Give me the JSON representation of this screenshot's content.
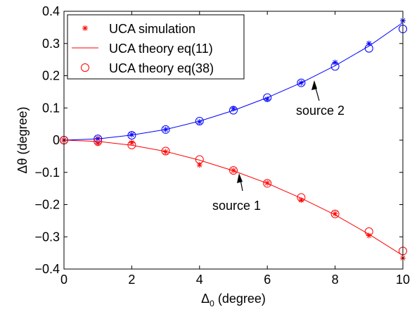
{
  "chart_data": {
    "type": "line",
    "xlabel": "Δ",
    "xlabel_sub": "0",
    "xlabel_unit": " (degree)",
    "ylabel": "Δθ (degree)",
    "xlim": [
      0,
      10
    ],
    "ylim": [
      -0.4,
      0.4
    ],
    "x_ticks": [
      "0",
      "2",
      "4",
      "6",
      "8",
      "10"
    ],
    "y_ticks": [
      "0.4",
      "0.3",
      "0.2",
      "0.1",
      "0",
      "−0.1",
      "−0.2",
      "−0.3",
      "−0.4"
    ],
    "grid": false,
    "legend_position": "top-left",
    "legend": {
      "simulation": "UCA simulation",
      "theory11": "UCA theory eq(11)",
      "theory38": "UCA theory eq(38)"
    },
    "annotations": {
      "source2": "source 2",
      "source1": "source 1"
    },
    "x": [
      0,
      1,
      2,
      3,
      4,
      5,
      6,
      7,
      8,
      9,
      10
    ],
    "sources": [
      {
        "label": "source 2",
        "color": "#0000ff",
        "simulation": [
          0,
          0.005,
          0.017,
          0.033,
          0.057,
          0.098,
          0.127,
          0.178,
          0.241,
          0.3,
          0.371
        ],
        "theory11": [
          0,
          0.004,
          0.016,
          0.033,
          0.059,
          0.092,
          0.132,
          0.178,
          0.231,
          0.292,
          0.365
        ],
        "theory38": [
          0,
          0.004,
          0.015,
          0.033,
          0.059,
          0.093,
          0.132,
          0.178,
          0.229,
          0.285,
          0.345
        ]
      },
      {
        "label": "source 1",
        "color": "#ff0000",
        "simulation": [
          0,
          -0.01,
          -0.008,
          -0.036,
          -0.077,
          -0.094,
          -0.133,
          -0.186,
          -0.228,
          -0.296,
          -0.366
        ],
        "theory11": [
          0,
          -0.004,
          -0.016,
          -0.035,
          -0.062,
          -0.095,
          -0.134,
          -0.18,
          -0.232,
          -0.292,
          -0.358
        ],
        "theory38": [
          0,
          -0.004,
          -0.015,
          -0.034,
          -0.06,
          -0.094,
          -0.134,
          -0.178,
          -0.229,
          -0.284,
          -0.344
        ]
      }
    ]
  }
}
